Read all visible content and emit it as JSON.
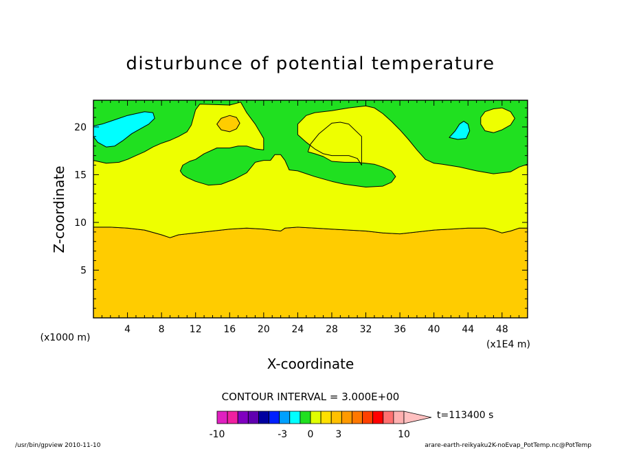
{
  "chart_data": {
    "type": "heatmap",
    "title": "disturbunce of potential temperature",
    "xlabel": "X-coordinate",
    "ylabel": "Z-coordinate",
    "x_unit": "(x1E4 m)",
    "y_unit": "(x1000 m)",
    "xlim": [
      0,
      51
    ],
    "ylim": [
      0,
      22.8
    ],
    "x_ticks": [
      4,
      8,
      12,
      16,
      20,
      24,
      28,
      32,
      36,
      40,
      44,
      48
    ],
    "y_ticks": [
      5,
      10,
      15,
      20
    ],
    "contour_interval_text": "CONTOUR INTERVAL = 3.000E+00",
    "time_label": "t=113400 s",
    "regions": [
      {
        "level": "orange",
        "color": "#ffcc00",
        "points": [
          [
            0,
            0
          ],
          [
            51,
            0
          ],
          [
            51,
            9.4
          ],
          [
            50,
            9.4
          ],
          [
            49,
            9.1
          ],
          [
            48,
            8.9
          ],
          [
            47,
            9.2
          ],
          [
            46,
            9.4
          ],
          [
            44,
            9.4
          ],
          [
            42,
            9.3
          ],
          [
            40,
            9.2
          ],
          [
            38,
            9.0
          ],
          [
            36,
            8.8
          ],
          [
            34,
            8.9
          ],
          [
            32,
            9.1
          ],
          [
            30,
            9.2
          ],
          [
            28,
            9.3
          ],
          [
            26,
            9.4
          ],
          [
            24,
            9.5
          ],
          [
            22.5,
            9.4
          ],
          [
            22,
            9.1
          ],
          [
            21,
            9.2
          ],
          [
            20,
            9.3
          ],
          [
            18,
            9.4
          ],
          [
            16,
            9.3
          ],
          [
            14,
            9.1
          ],
          [
            12,
            8.9
          ],
          [
            10,
            8.7
          ],
          [
            9,
            8.4
          ],
          [
            8,
            8.7
          ],
          [
            6,
            9.2
          ],
          [
            4,
            9.4
          ],
          [
            2,
            9.5
          ],
          [
            0,
            9.5
          ]
        ]
      },
      {
        "level": "yellow",
        "color": "#eeff00",
        "points": [
          [
            0,
            9.5
          ],
          [
            2,
            9.5
          ],
          [
            4,
            9.4
          ],
          [
            6,
            9.2
          ],
          [
            8,
            8.7
          ],
          [
            9,
            8.4
          ],
          [
            10,
            8.7
          ],
          [
            12,
            8.9
          ],
          [
            14,
            9.1
          ],
          [
            16,
            9.3
          ],
          [
            18,
            9.4
          ],
          [
            20,
            9.3
          ],
          [
            21,
            9.2
          ],
          [
            22,
            9.1
          ],
          [
            22.5,
            9.4
          ],
          [
            24,
            9.5
          ],
          [
            26,
            9.4
          ],
          [
            28,
            9.3
          ],
          [
            30,
            9.2
          ],
          [
            32,
            9.1
          ],
          [
            34,
            8.9
          ],
          [
            36,
            8.8
          ],
          [
            38,
            9.0
          ],
          [
            40,
            9.2
          ],
          [
            42,
            9.3
          ],
          [
            44,
            9.4
          ],
          [
            46,
            9.4
          ],
          [
            47,
            9.2
          ],
          [
            48,
            8.9
          ],
          [
            49,
            9.1
          ],
          [
            50,
            9.4
          ],
          [
            51,
            9.4
          ],
          [
            51,
            16.1
          ],
          [
            50,
            15.8
          ],
          [
            49,
            15.3
          ],
          [
            47,
            15.1
          ],
          [
            45,
            15.4
          ],
          [
            43,
            15.8
          ],
          [
            41,
            16.1
          ],
          [
            40,
            16.2
          ],
          [
            39,
            16.6
          ],
          [
            38,
            17.6
          ],
          [
            37,
            18.7
          ],
          [
            36,
            19.7
          ],
          [
            35,
            20.6
          ],
          [
            34,
            21.4
          ],
          [
            33,
            22.0
          ],
          [
            32,
            22.2
          ],
          [
            30,
            22.0
          ],
          [
            28,
            21.7
          ],
          [
            26,
            21.5
          ],
          [
            25,
            21.2
          ],
          [
            24,
            20.3
          ],
          [
            24,
            19.2
          ],
          [
            25,
            18.4
          ],
          [
            26,
            17.7
          ],
          [
            27,
            17.2
          ],
          [
            28,
            17.0
          ],
          [
            30,
            17.0
          ],
          [
            31,
            16.7
          ],
          [
            31.5,
            16.0
          ],
          [
            31.5,
            19.0
          ],
          [
            30,
            20.3
          ],
          [
            29,
            20.5
          ],
          [
            28,
            20.4
          ],
          [
            26.5,
            19.3
          ],
          [
            25.5,
            18.2
          ],
          [
            25.2,
            17.4
          ],
          [
            26,
            17.2
          ],
          [
            27,
            16.9
          ],
          [
            28,
            16.4
          ],
          [
            29.5,
            16.3
          ],
          [
            31,
            16.3
          ],
          [
            33,
            16.1
          ],
          [
            34,
            15.8
          ],
          [
            35,
            15.4
          ],
          [
            35.5,
            14.8
          ],
          [
            35,
            14.2
          ],
          [
            34,
            13.8
          ],
          [
            32,
            13.7
          ],
          [
            29.5,
            14.0
          ],
          [
            28,
            14.3
          ],
          [
            26,
            14.8
          ],
          [
            24,
            15.4
          ],
          [
            23,
            15.5
          ],
          [
            22.5,
            16.5
          ],
          [
            22,
            17.1
          ],
          [
            21.3,
            17.1
          ],
          [
            20.8,
            16.5
          ],
          [
            20,
            16.5
          ],
          [
            19,
            16.3
          ],
          [
            18,
            15.2
          ],
          [
            16.5,
            14.5
          ],
          [
            15,
            14.0
          ],
          [
            13.5,
            13.9
          ],
          [
            12,
            14.3
          ],
          [
            11,
            14.7
          ],
          [
            10.5,
            15.0
          ],
          [
            10.2,
            15.4
          ],
          [
            10.5,
            16.0
          ],
          [
            11.3,
            16.4
          ],
          [
            12,
            16.6
          ],
          [
            13,
            17.2
          ],
          [
            14.5,
            17.8
          ],
          [
            16,
            17.8
          ],
          [
            17,
            18.0
          ],
          [
            18,
            18.0
          ],
          [
            19,
            17.7
          ],
          [
            20,
            17.6
          ],
          [
            20,
            18.8
          ],
          [
            19,
            20.3
          ],
          [
            18,
            21.5
          ],
          [
            17.3,
            22.6
          ],
          [
            16,
            22.3
          ],
          [
            12.5,
            22.4
          ],
          [
            12,
            21.8
          ],
          [
            11.5,
            20.2
          ],
          [
            11,
            19.5
          ],
          [
            10,
            19.0
          ],
          [
            9,
            18.6
          ],
          [
            8,
            18.3
          ],
          [
            7,
            17.9
          ],
          [
            6,
            17.4
          ],
          [
            5,
            17.0
          ],
          [
            4,
            16.6
          ],
          [
            3,
            16.3
          ],
          [
            1.5,
            16.2
          ],
          [
            0,
            16.5
          ]
        ]
      },
      {
        "level": "yellow",
        "color": "#eeff00",
        "points": [
          [
            45.5,
            21.0
          ],
          [
            46,
            21.6
          ],
          [
            47,
            21.9
          ],
          [
            48,
            22.0
          ],
          [
            49,
            21.6
          ],
          [
            49.5,
            20.9
          ],
          [
            49,
            20.2
          ],
          [
            48,
            19.7
          ],
          [
            47,
            19.4
          ],
          [
            46,
            19.6
          ],
          [
            45.5,
            20.3
          ]
        ]
      },
      {
        "level": "orange",
        "color": "#ffcc00",
        "points": [
          [
            14.5,
            20.3
          ],
          [
            15,
            20.9
          ],
          [
            16,
            21.2
          ],
          [
            16.8,
            21.0
          ],
          [
            17.2,
            20.4
          ],
          [
            16.8,
            19.8
          ],
          [
            16,
            19.5
          ],
          [
            15,
            19.7
          ]
        ]
      },
      {
        "level": "cyan",
        "color": "#00ffff",
        "points": [
          [
            0,
            19.0
          ],
          [
            0.5,
            18.4
          ],
          [
            1.5,
            17.9
          ],
          [
            2.5,
            18.0
          ],
          [
            3.5,
            18.6
          ],
          [
            4.5,
            19.3
          ],
          [
            5.5,
            19.8
          ],
          [
            6.5,
            20.3
          ],
          [
            7.2,
            20.9
          ],
          [
            7,
            21.5
          ],
          [
            6,
            21.6
          ],
          [
            5,
            21.4
          ],
          [
            4,
            21.2
          ],
          [
            3,
            20.9
          ],
          [
            2,
            20.6
          ],
          [
            1,
            20.3
          ],
          [
            0,
            20.1
          ]
        ]
      },
      {
        "level": "cyan",
        "color": "#00ffff",
        "points": [
          [
            41.8,
            18.9
          ],
          [
            42.5,
            19.6
          ],
          [
            43,
            20.3
          ],
          [
            43.5,
            20.6
          ],
          [
            44,
            20.3
          ],
          [
            44.2,
            19.6
          ],
          [
            43.8,
            18.8
          ],
          [
            42.8,
            18.7
          ]
        ]
      }
    ],
    "colorbar": {
      "colors": [
        "#e020c0",
        "#f020a0",
        "#8000c0",
        "#6000b0",
        "#0000a0",
        "#0020ff",
        "#00a0ff",
        "#00ffff",
        "#20e020",
        "#e0ff00",
        "#ffe000",
        "#ffc000",
        "#ff9a00",
        "#ff7800",
        "#ff4000",
        "#ff0000",
        "#ff7070",
        "#ffb0b0"
      ],
      "tick_labels": [
        "-10",
        "-3",
        "0",
        "3",
        "10"
      ],
      "tick_values": [
        -10,
        -3,
        0,
        3,
        10
      ]
    }
  },
  "footer": {
    "left": "/usr/bin/gpview  2010-11-10",
    "right": "arare-earth-reikyaku2K-noEvap_PotTemp.nc@PotTemp"
  }
}
